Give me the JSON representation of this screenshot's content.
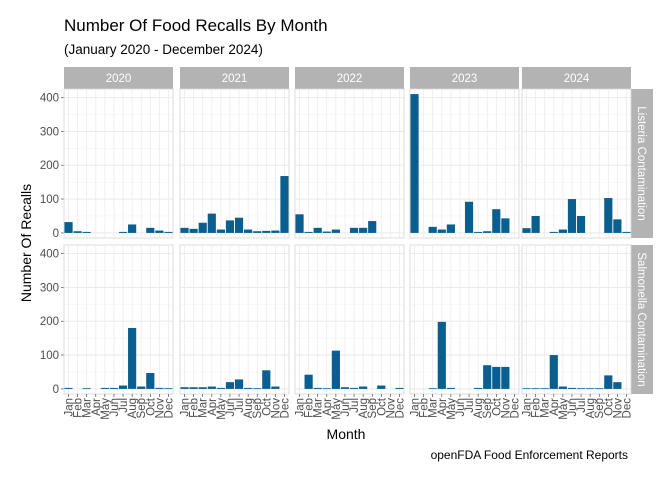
{
  "chart_data": {
    "type": "bar",
    "title": "Number Of Food Recalls By Month",
    "subtitle": "(January 2020 - December 2024)",
    "caption": "openFDA Food Enforcement Reports",
    "xlabel": "Month",
    "ylabel": "Number Of Recalls",
    "ylim": [
      -15,
      425
    ],
    "yticks": [
      0,
      100,
      200,
      300,
      400
    ],
    "categories": [
      "Jan",
      "Feb",
      "Mar",
      "Apr",
      "May",
      "Jun",
      "Jul",
      "Aug",
      "Sep",
      "Oct",
      "Nov",
      "Dec"
    ],
    "years": [
      "2020",
      "2021",
      "2022",
      "2023",
      "2024"
    ],
    "grid": true,
    "bar_color": "#0b5f8e",
    "strip_color": "#b3b3b3",
    "rows": [
      {
        "name": "Listeria Contamination",
        "panels": [
          {
            "year": "2020",
            "values": [
              32,
              5,
              3,
              0,
              0,
              0,
              3,
              25,
              0,
              15,
              7,
              3
            ]
          },
          {
            "year": "2021",
            "values": [
              15,
              12,
              30,
              57,
              10,
              37,
              45,
              10,
              5,
              6,
              7,
              168
            ]
          },
          {
            "year": "2022",
            "values": [
              55,
              3,
              15,
              4,
              10,
              0,
              15,
              15,
              35,
              0,
              0,
              0
            ]
          },
          {
            "year": "2023",
            "values": [
              410,
              0,
              18,
              10,
              25,
              0,
              92,
              3,
              5,
              70,
              43,
              0
            ]
          },
          {
            "year": "2024",
            "values": [
              14,
              50,
              0,
              3,
              10,
              100,
              50,
              0,
              0,
              103,
              40,
              3
            ]
          }
        ]
      },
      {
        "name": "Salmonella Contamination",
        "panels": [
          {
            "year": "2020",
            "values": [
              3,
              0,
              2,
              0,
              3,
              3,
              10,
              180,
              7,
              47,
              3,
              2
            ]
          },
          {
            "year": "2021",
            "values": [
              5,
              5,
              5,
              7,
              3,
              20,
              28,
              3,
              2,
              55,
              7,
              0
            ]
          },
          {
            "year": "2022",
            "values": [
              0,
              42,
              3,
              2,
              113,
              5,
              3,
              7,
              0,
              10,
              0,
              3
            ]
          },
          {
            "year": "2023",
            "values": [
              0,
              0,
              2,
              198,
              3,
              0,
              0,
              3,
              70,
              65,
              65,
              0
            ]
          },
          {
            "year": "2024",
            "values": [
              2,
              2,
              2,
              100,
              7,
              3,
              2,
              2,
              2,
              40,
              20,
              0
            ]
          }
        ]
      }
    ]
  }
}
